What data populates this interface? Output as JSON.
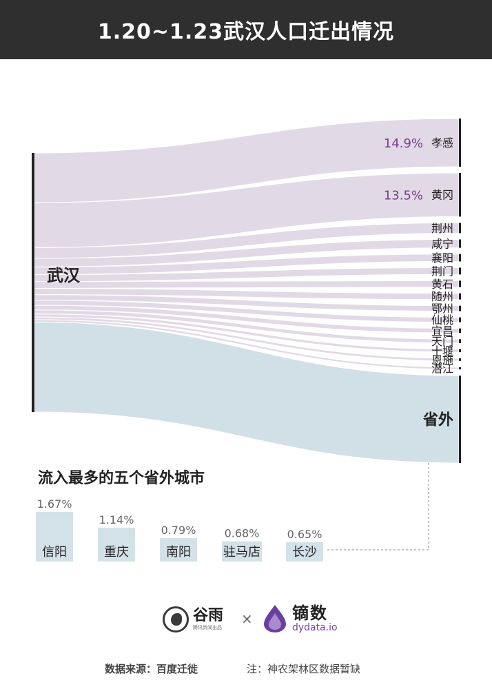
{
  "title": "1.20~1.23武汉人口迁出情况",
  "chart_data": [
    {
      "type": "sankey",
      "source": "武汉",
      "targets": [
        {
          "name": "孝感",
          "share": 14.9,
          "label": "14.9%"
        },
        {
          "name": "黄冈",
          "share": 13.5,
          "label": "13.5%"
        },
        {
          "name": "荆州",
          "share": 3.2
        },
        {
          "name": "咸宁",
          "share": 2.6
        },
        {
          "name": "襄阳",
          "share": 2.3
        },
        {
          "name": "荆门",
          "share": 2.1
        },
        {
          "name": "黄石",
          "share": 2.0
        },
        {
          "name": "随州",
          "share": 1.9
        },
        {
          "name": "鄂州",
          "share": 1.7
        },
        {
          "name": "仙桃",
          "share": 1.5
        },
        {
          "name": "宜昌",
          "share": 1.4
        },
        {
          "name": "天门",
          "share": 1.2
        },
        {
          "name": "十堰",
          "share": 0.9
        },
        {
          "name": "恩施",
          "share": 0.8
        },
        {
          "name": "潜江",
          "share": 0.7
        },
        {
          "name": "省外",
          "share": 27.0
        }
      ],
      "colors": {
        "hubei": "#d6c9dc",
        "outside": "#c9dbe2",
        "pct_text": "#7b3f8c"
      }
    },
    {
      "type": "bar",
      "title": "流入最多的五个省外城市",
      "categories": [
        "信阳",
        "重庆",
        "南阳",
        "驻马店",
        "长沙"
      ],
      "values": [
        1.67,
        1.14,
        0.79,
        0.68,
        0.65
      ],
      "labels": [
        "1.67%",
        "1.14%",
        "0.79%",
        "0.68%",
        "0.65%"
      ],
      "color": "#d3e2e8"
    }
  ],
  "logos": {
    "guyu_name": "谷雨",
    "guyu_tagline": "腾讯新闻出品",
    "times": "×",
    "dydata_name": "镝数",
    "dydata_url": "dydata.io"
  },
  "footer": {
    "source": "数据来源：百度迁徙",
    "note": "注：神农架林区数据暂缺"
  }
}
